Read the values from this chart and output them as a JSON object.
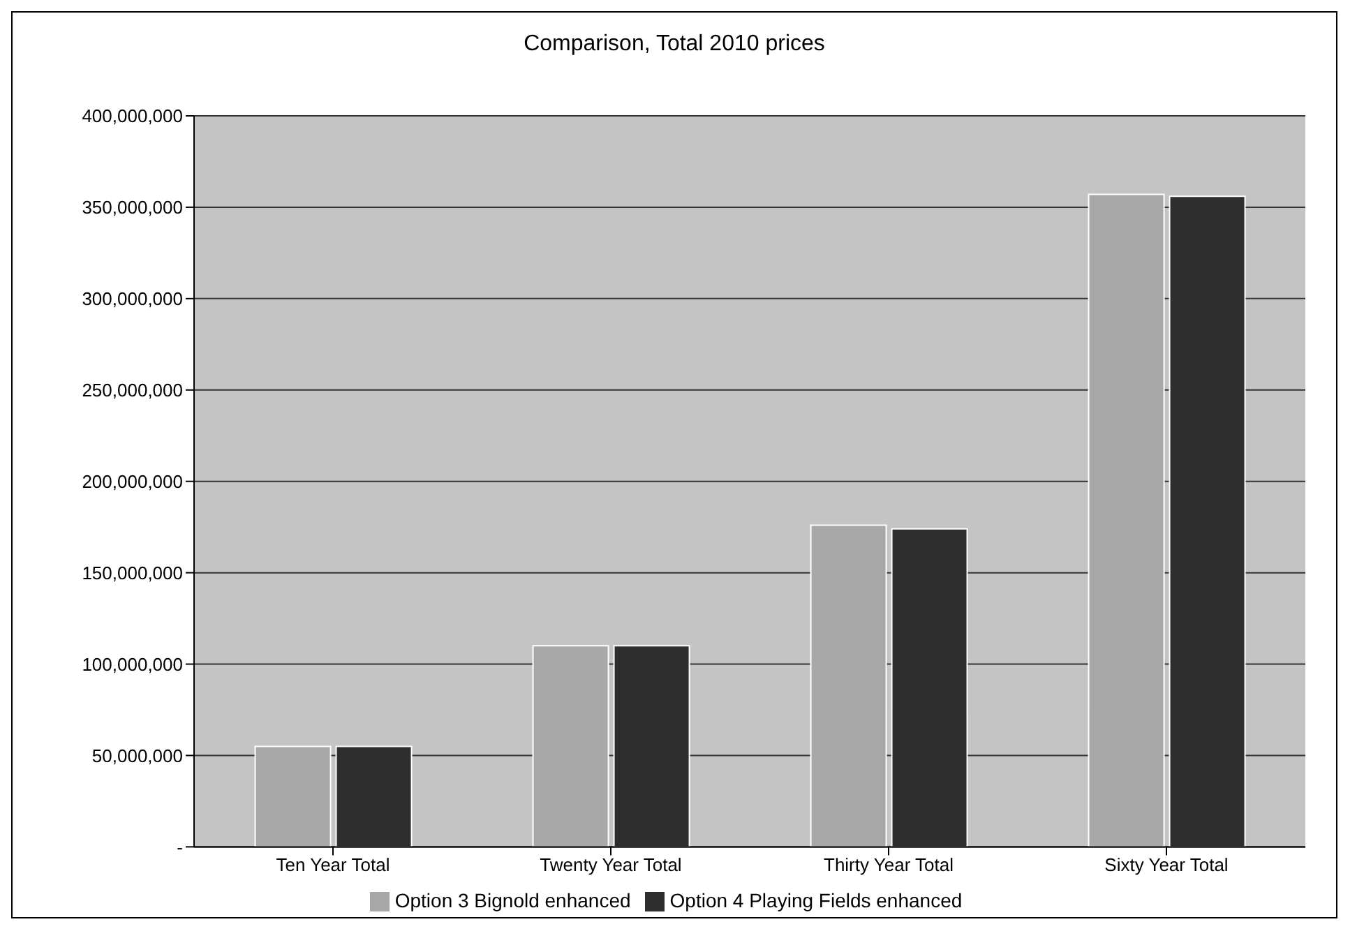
{
  "chart_data": {
    "type": "bar",
    "title": "Comparison, Total 2010 prices",
    "categories": [
      "Ten Year Total",
      "Twenty Year Total",
      "Thirty Year Total",
      "Sixty Year Total"
    ],
    "series": [
      {
        "name": "Option 3 Bignold enhanced",
        "color": "#a8a8a8",
        "values": [
          55000000,
          110000000,
          176000000,
          357000000
        ]
      },
      {
        "name": "Option 4 Playing Fields enhanced",
        "color": "#2e2e2e",
        "values": [
          55000000,
          110000000,
          174000000,
          356000000
        ]
      }
    ],
    "ylim": [
      0,
      400000000
    ],
    "yticks": [
      {
        "value": 0,
        "label": "-"
      },
      {
        "value": 50000000,
        "label": "50,000,000"
      },
      {
        "value": 100000000,
        "label": "100,000,000"
      },
      {
        "value": 150000000,
        "label": "150,000,000"
      },
      {
        "value": 200000000,
        "label": "200,000,000"
      },
      {
        "value": 250000000,
        "label": "250,000,000"
      },
      {
        "value": 300000000,
        "label": "300,000,000"
      },
      {
        "value": 350000000,
        "label": "350,000,000"
      },
      {
        "value": 400000000,
        "label": "400,000,000"
      }
    ],
    "grid": "y",
    "legend": "bottom"
  }
}
